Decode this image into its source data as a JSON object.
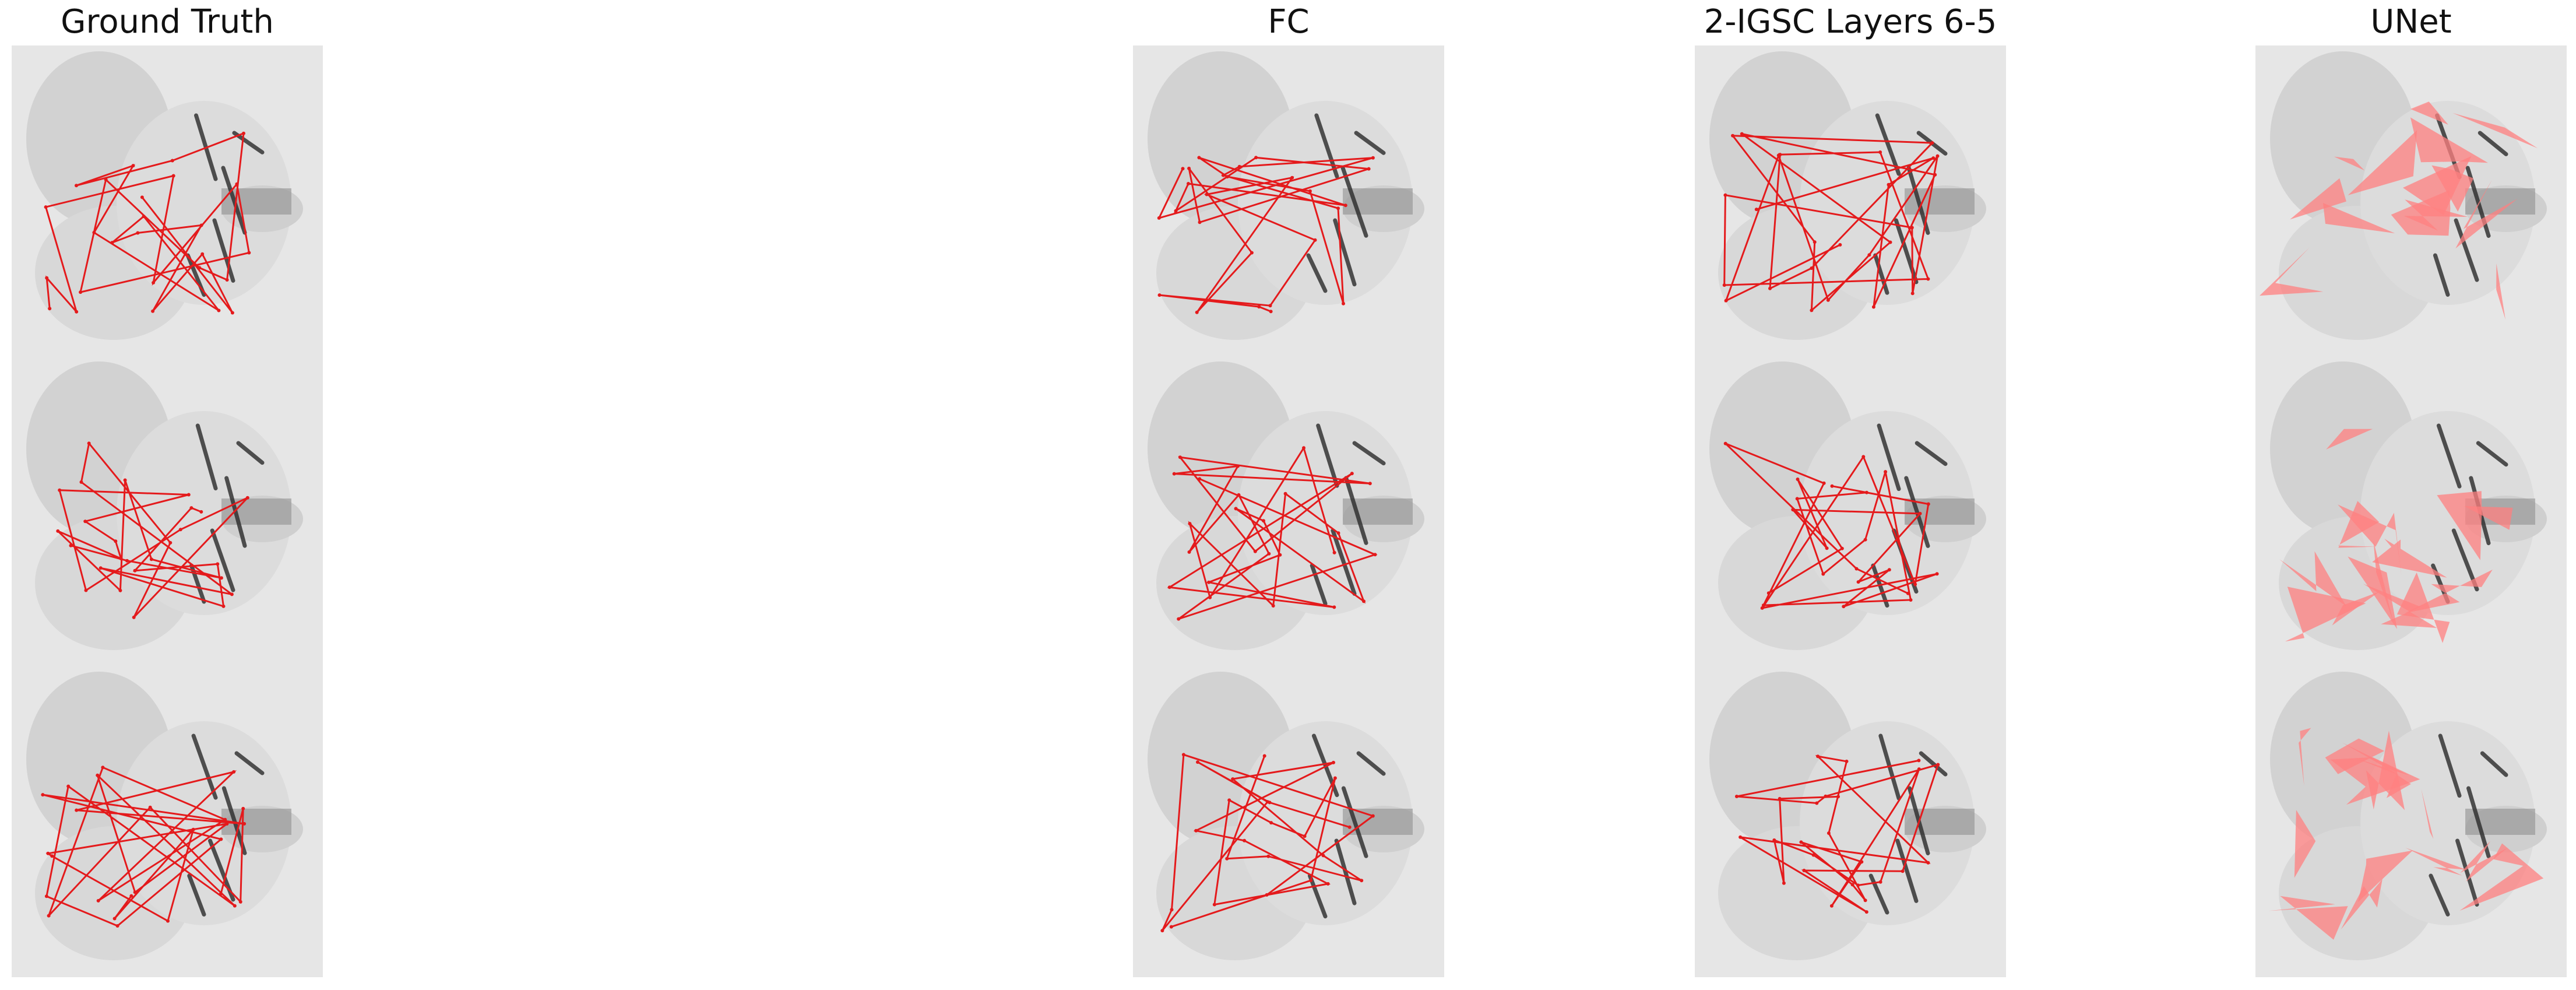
{
  "figure": {
    "columns": [
      {
        "id": "gt",
        "title": "Ground Truth",
        "overlay": "keypoint-graph"
      },
      {
        "id": "fc",
        "title": "FC",
        "overlay": "keypoint-graph"
      },
      {
        "id": "igsc",
        "title": "2-IGSC Layers 6-5",
        "overlay": "keypoint-graph"
      },
      {
        "id": "unet",
        "title": "UNet",
        "overlay": "segmentation-mask"
      }
    ],
    "rows": 3,
    "overlay_color": "#e41a1c",
    "mask_color": "#ff8080",
    "background": "grayscale fly image"
  }
}
